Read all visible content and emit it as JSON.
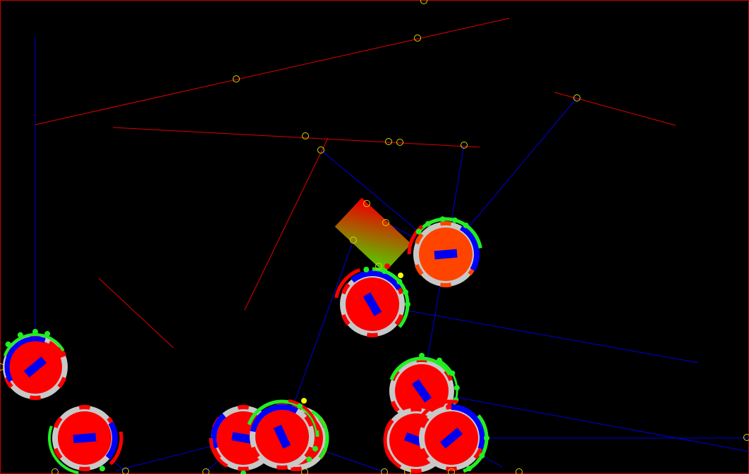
{
  "scene": {
    "kind": "robot-swarm-simulation",
    "colors": {
      "border": "#cc0000",
      "wall": "#e00000",
      "sensor_ray": "#0000dd",
      "hit_marker": "#d8d800",
      "robot_body": "#ff0000",
      "robot_body_active": "#ff4400",
      "robot_ring": "#c8c8c8",
      "robot_heading": "#0000ee",
      "arc_blue": "#0000ff",
      "arc_red": "#ff0000",
      "arc_green": "#22ee22",
      "target_from": "#ee0000",
      "target_to": "#55cc00"
    },
    "robot_count": 10,
    "target_block": "gradient-box",
    "walls_visible": true,
    "sensor_rays_visible": true
  }
}
